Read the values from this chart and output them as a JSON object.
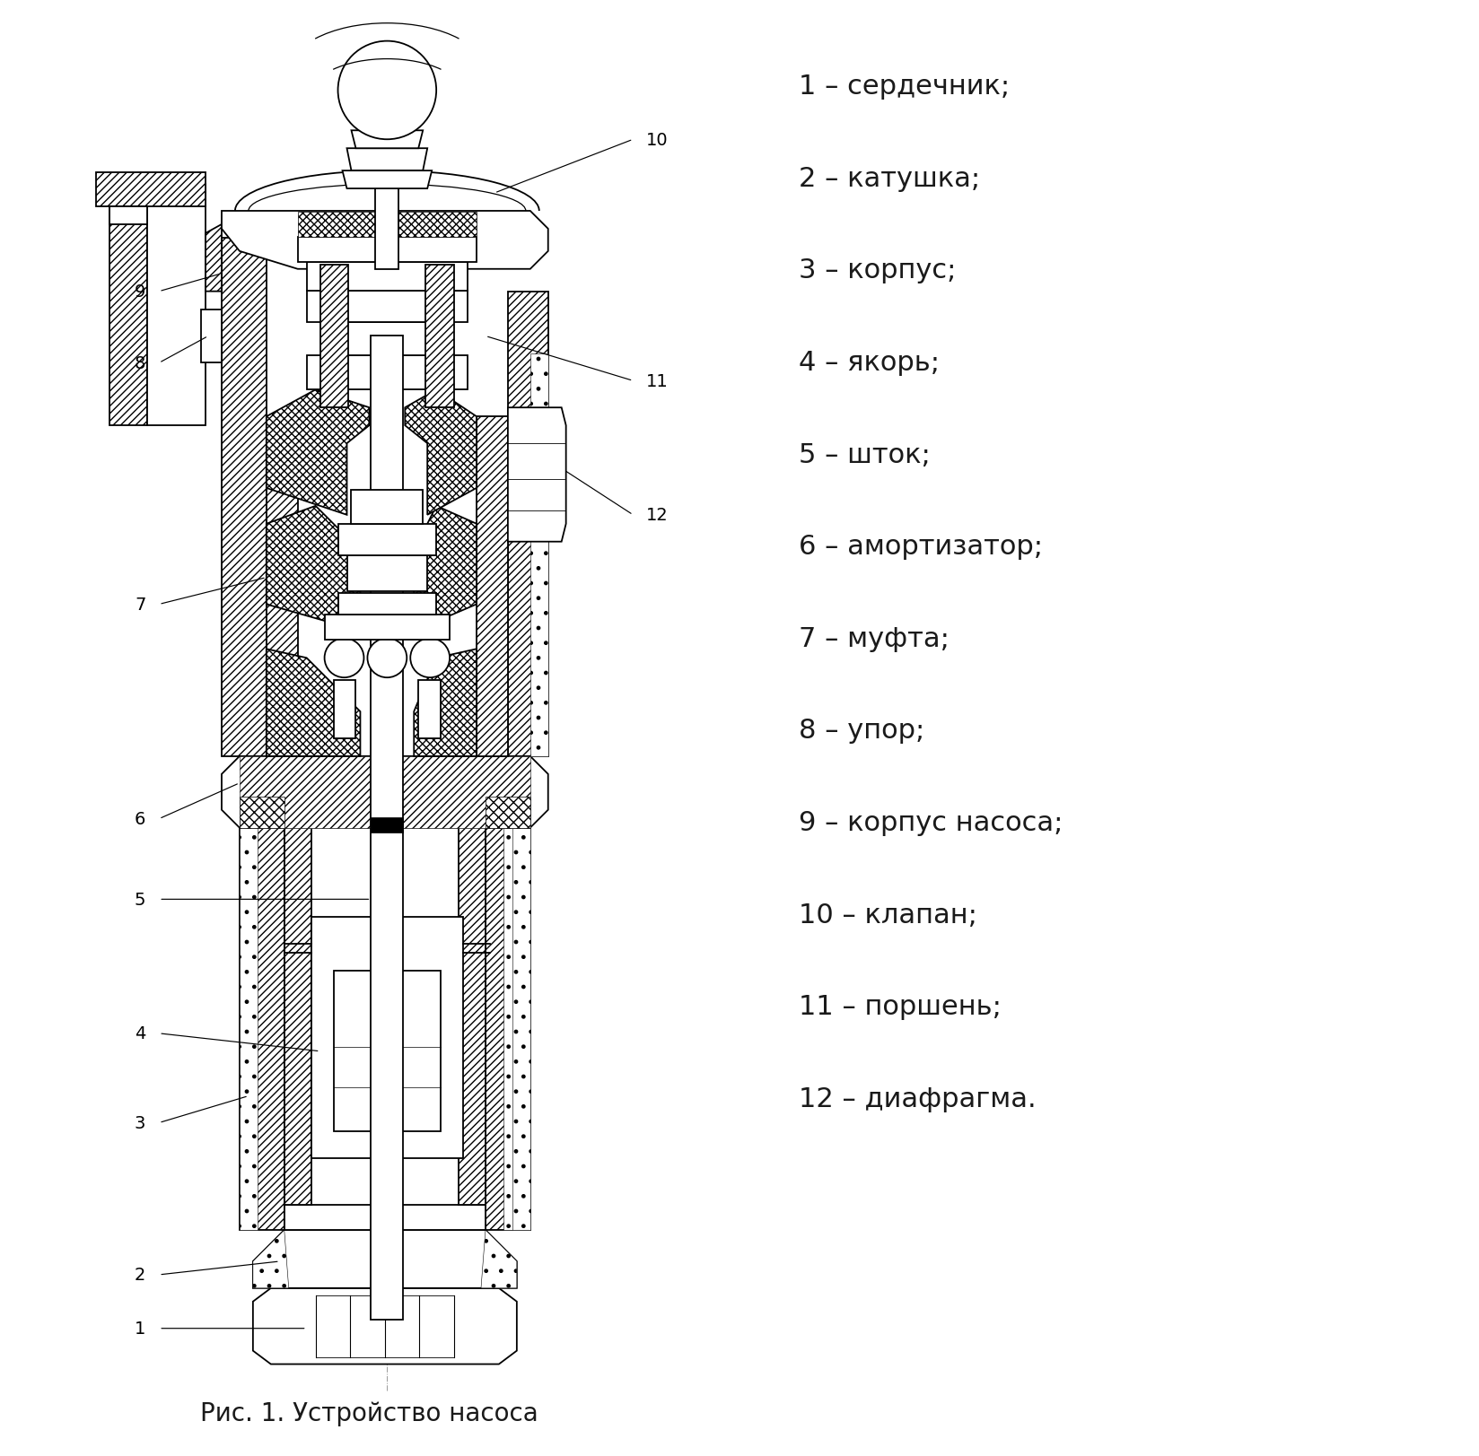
{
  "legend_items": [
    "1 – сердечник;",
    "2 – катушка;",
    "3 – корпус;",
    "4 – якорь;",
    "5 – шток;",
    "6 – амортизатор;",
    "7 – муфта;",
    "8 – упор;",
    "9 – корпус насоса;",
    "10 – клапан;",
    "11 – поршень;",
    "12 – диафрагма."
  ],
  "caption": "Рис. 1. Устройство насоса",
  "bg_color": "#ffffff",
  "text_color": "#1a1a1a",
  "label_fontsize": 22,
  "caption_fontsize": 20
}
